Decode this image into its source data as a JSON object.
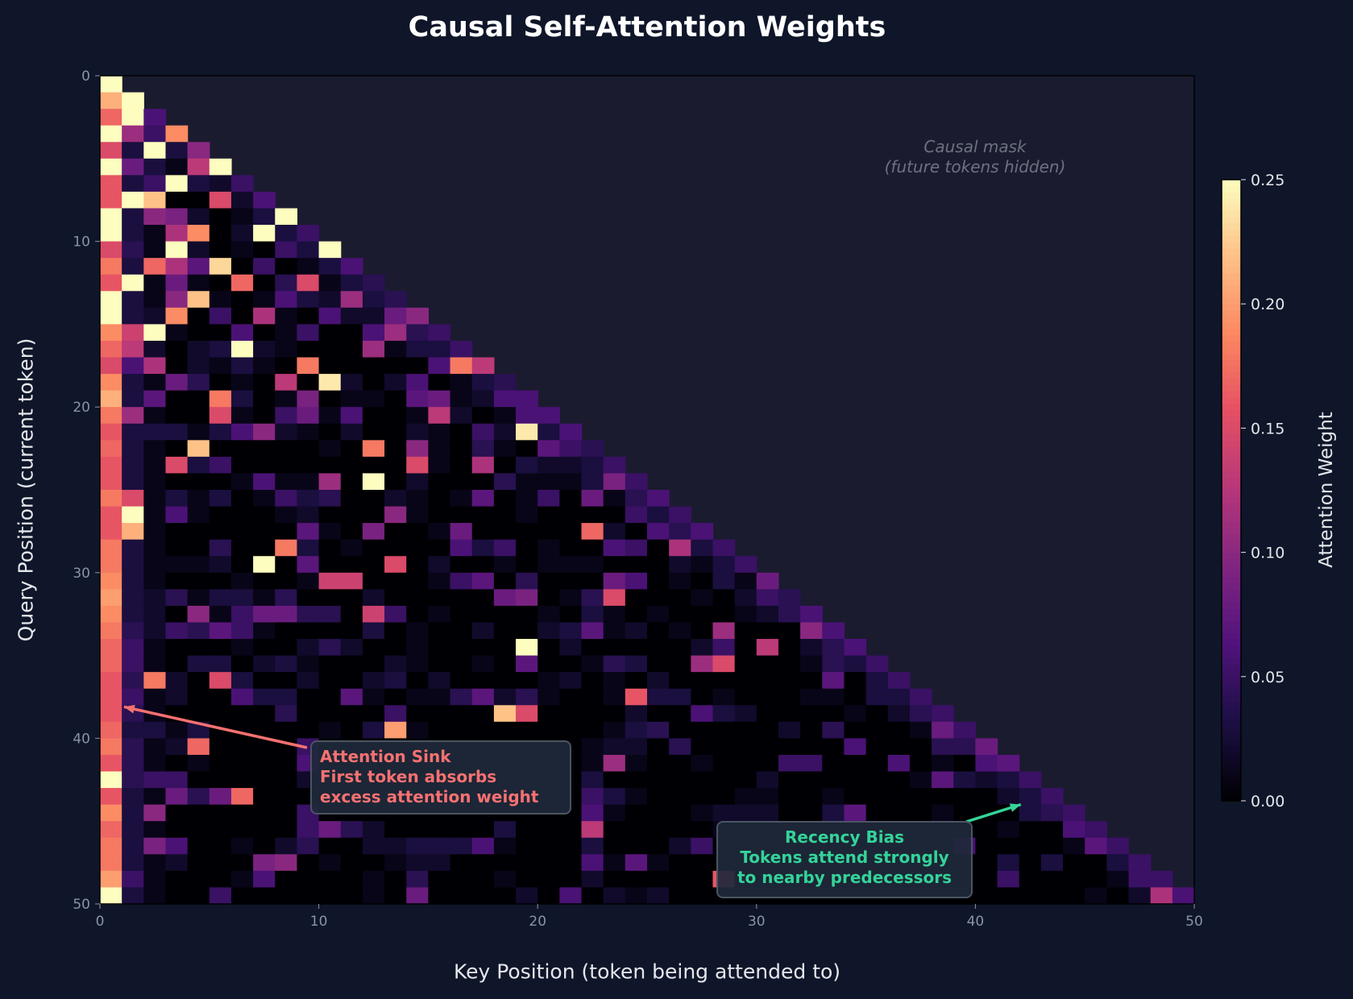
{
  "chart_data": {
    "type": "heatmap",
    "title": "Causal Self-Attention Weights",
    "xlabel": "Key Position (token being attended to)",
    "ylabel": "Query Position (current token)",
    "xlim": [
      0,
      50
    ],
    "ylim": [
      50,
      0
    ],
    "xticks": [
      "0",
      "10",
      "20",
      "30",
      "40",
      "50"
    ],
    "yticks": [
      "0",
      "10",
      "20",
      "30",
      "40",
      "50"
    ],
    "colormap": "magma",
    "colorbar": {
      "label": "Attention Weight",
      "range": [
        0,
        0.25
      ],
      "ticks": [
        "0.00",
        "0.05",
        "0.10",
        "0.15",
        "0.20",
        "0.25"
      ]
    },
    "grid": false,
    "masked_color": "#1b1b2f",
    "rows": [
      [
        0.25
      ],
      [
        0.21,
        0.25
      ],
      [
        0.17,
        0.25,
        0.06
      ],
      [
        0.25,
        0.11,
        0.05,
        0.19
      ],
      [
        0.15,
        0.03,
        0.25,
        0.03,
        0.1
      ],
      [
        0.25,
        0.08,
        0.03,
        0.01,
        0.13,
        0.25
      ],
      [
        0.16,
        0.03,
        0.05,
        0.25,
        0.03,
        0.02,
        0.05
      ],
      [
        0.16,
        0.25,
        0.22,
        0,
        0,
        0.15,
        0.02,
        0.06
      ],
      [
        0.25,
        0.03,
        0.1,
        0.09,
        0.02,
        0,
        0.01,
        0.03,
        0.25
      ],
      [
        0.25,
        0.03,
        0.01,
        0.12,
        0.19,
        0,
        0.02,
        0.25,
        0.03,
        0.05
      ],
      [
        0.15,
        0.04,
        0.01,
        0.25,
        0.02,
        0,
        0.01,
        0,
        0.05,
        0.03,
        0.25
      ],
      [
        0.18,
        0.03,
        0.17,
        0.12,
        0.07,
        0.23,
        0,
        0.05,
        0,
        0.01,
        0.03,
        0.06
      ],
      [
        0.16,
        0.25,
        0.01,
        0.08,
        0.01,
        0,
        0.17,
        0,
        0.04,
        0.15,
        0.01,
        0.03,
        0.04
      ],
      [
        0.25,
        0.03,
        0.01,
        0.1,
        0.22,
        0.01,
        0,
        0.01,
        0.06,
        0.03,
        0.02,
        0.11,
        0.03,
        0.04
      ],
      [
        0.25,
        0.03,
        0.02,
        0.19,
        0,
        0.05,
        0,
        0.12,
        0.01,
        0,
        0.06,
        0.02,
        0.02,
        0.08,
        0.1
      ],
      [
        0.19,
        0.14,
        0.25,
        0.01,
        0,
        0,
        0.06,
        0,
        0.01,
        0.05,
        0,
        0,
        0.06,
        0.11,
        0.04,
        0.05
      ],
      [
        0.17,
        0.13,
        0.02,
        0,
        0.02,
        0.03,
        0.25,
        0.02,
        0.01,
        0,
        0,
        0,
        0.11,
        0.01,
        0.03,
        0.03,
        0.05
      ],
      [
        0.15,
        0.06,
        0.12,
        0,
        0.02,
        0.01,
        0.03,
        0.01,
        0,
        0.18,
        0,
        0,
        0,
        0,
        0,
        0.06,
        0.18,
        0.13
      ],
      [
        0.19,
        0.03,
        0.01,
        0.08,
        0.04,
        0,
        0.01,
        0,
        0.13,
        0,
        0.24,
        0.02,
        0,
        0.02,
        0.06,
        0,
        0.01,
        0.03,
        0.04
      ],
      [
        0.21,
        0.03,
        0.07,
        0,
        0,
        0.18,
        0.03,
        0,
        0.01,
        0.09,
        0,
        0.01,
        0.01,
        0,
        0.07,
        0.08,
        0.01,
        0.02,
        0.06,
        0.06
      ],
      [
        0.18,
        0.11,
        0.01,
        0,
        0,
        0.15,
        0.01,
        0,
        0.05,
        0.08,
        0.01,
        0.06,
        0,
        0,
        0.01,
        0.13,
        0.02,
        0,
        0.01,
        0.06,
        0.06
      ],
      [
        0.16,
        0.03,
        0.03,
        0.03,
        0.01,
        0.03,
        0.06,
        0.1,
        0.02,
        0.01,
        0,
        0.02,
        0,
        0,
        0.02,
        0.01,
        0,
        0.05,
        0.02,
        0.24,
        0.03,
        0.06
      ],
      [
        0.17,
        0.03,
        0.01,
        0,
        0.22,
        0,
        0,
        0,
        0,
        0,
        0.01,
        0,
        0.18,
        0,
        0.1,
        0.01,
        0,
        0.04,
        0.01,
        0,
        0.07,
        0.05,
        0.04
      ],
      [
        0.16,
        0.03,
        0.01,
        0.15,
        0.03,
        0.05,
        0,
        0,
        0,
        0,
        0,
        0,
        0,
        0,
        0.15,
        0.01,
        0,
        0.12,
        0,
        0.03,
        0.02,
        0.02,
        0.03,
        0.05
      ],
      [
        0.16,
        0.03,
        0.01,
        0,
        0,
        0,
        0.01,
        0.06,
        0.01,
        0.01,
        0.11,
        0,
        0.25,
        0,
        0.02,
        0,
        0,
        0,
        0.04,
        0.01,
        0.01,
        0.01,
        0.03,
        0.09,
        0.05
      ],
      [
        0.18,
        0.15,
        0.01,
        0.03,
        0.01,
        0.03,
        0,
        0.01,
        0.05,
        0.03,
        0.04,
        0,
        0,
        0.02,
        0.01,
        0,
        0.01,
        0.07,
        0,
        0.01,
        0.05,
        0,
        0.08,
        0.01,
        0.04,
        0.06
      ],
      [
        0.16,
        0.25,
        0.01,
        0.06,
        0.01,
        0,
        0,
        0,
        0.01,
        0.02,
        0,
        0,
        0,
        0.1,
        0.01,
        0,
        0,
        0,
        0,
        0.01,
        0,
        0,
        0,
        0,
        0.05,
        0.03,
        0.05
      ],
      [
        0.16,
        0.21,
        0.01,
        0,
        0,
        0,
        0,
        0,
        0,
        0.07,
        0.01,
        0,
        0.09,
        0,
        0,
        0.01,
        0.08,
        0,
        0,
        0,
        0,
        0,
        0.17,
        0.02,
        0,
        0.06,
        0.04,
        0.06
      ],
      [
        0.18,
        0.03,
        0.01,
        0,
        0,
        0.04,
        0,
        0,
        0.18,
        0.03,
        0,
        0.01,
        0,
        0,
        0,
        0,
        0.06,
        0.03,
        0.05,
        0,
        0.01,
        0,
        0,
        0.06,
        0.05,
        0,
        0.12,
        0.03,
        0.05
      ],
      [
        0.18,
        0.03,
        0.01,
        0.01,
        0.01,
        0.02,
        0,
        0.25,
        0,
        0.07,
        0,
        0,
        0,
        0.15,
        0,
        0.02,
        0,
        0,
        0.01,
        0,
        0.01,
        0.01,
        0.01,
        0,
        0,
        0,
        0.02,
        0.01,
        0.03,
        0.05
      ],
      [
        0.19,
        0.03,
        0.01,
        0,
        0,
        0,
        0.01,
        0,
        0,
        0.01,
        0.14,
        0.14,
        0,
        0,
        0,
        0.01,
        0.05,
        0.07,
        0,
        0.04,
        0,
        0,
        0,
        0.08,
        0.06,
        0,
        0.01,
        0,
        0.03,
        0.01,
        0.08
      ],
      [
        0.2,
        0.03,
        0.02,
        0.04,
        0.01,
        0.03,
        0.03,
        0.01,
        0.04,
        0,
        0,
        0,
        0.02,
        0,
        0,
        0,
        0,
        0,
        0.08,
        0.09,
        0,
        0.01,
        0.04,
        0.15,
        0,
        0,
        0,
        0.01,
        0,
        0.02,
        0.05,
        0.04
      ],
      [
        0.19,
        0.03,
        0.02,
        0,
        0.1,
        0.01,
        0.05,
        0.08,
        0.08,
        0.04,
        0.04,
        0,
        0.14,
        0.05,
        0,
        0.01,
        0,
        0,
        0,
        0,
        0.01,
        0,
        0.03,
        0.01,
        0,
        0.01,
        0,
        0,
        0,
        0.01,
        0.02,
        0.04,
        0.06
      ],
      [
        0.18,
        0.04,
        0.02,
        0.05,
        0.04,
        0.07,
        0.05,
        0.01,
        0,
        0,
        0,
        0,
        0.03,
        0,
        0.01,
        0,
        0,
        0.02,
        0,
        0,
        0.02,
        0.03,
        0.07,
        0.01,
        0.02,
        0,
        0.01,
        0,
        0.11,
        0,
        0,
        0,
        0.1,
        0.06
      ],
      [
        0.17,
        0.05,
        0.01,
        0,
        0,
        0,
        0.01,
        0,
        0,
        0.02,
        0.04,
        0.02,
        0,
        0,
        0.01,
        0,
        0,
        0,
        0,
        0.25,
        0,
        0.02,
        0,
        0,
        0,
        0,
        0,
        0.02,
        0.05,
        0,
        0.13,
        0,
        0.02,
        0.04,
        0.06
      ],
      [
        0.17,
        0.05,
        0.01,
        0,
        0.03,
        0.03,
        0,
        0.02,
        0.03,
        0.01,
        0,
        0,
        0,
        0.02,
        0.01,
        0,
        0,
        0.01,
        0,
        0.07,
        0,
        0,
        0.01,
        0.04,
        0.03,
        0,
        0,
        0.11,
        0.15,
        0,
        0,
        0,
        0.01,
        0.04,
        0.03,
        0.05
      ],
      [
        0.16,
        0.04,
        0.18,
        0.02,
        0,
        0.15,
        0.03,
        0,
        0,
        0.02,
        0,
        0,
        0.02,
        0.03,
        0,
        0.02,
        0,
        0,
        0,
        0,
        0.01,
        0.02,
        0,
        0.01,
        0,
        0.02,
        0,
        0,
        0,
        0,
        0,
        0,
        0,
        0.07,
        0,
        0.03,
        0.05
      ],
      [
        0.16,
        0.05,
        0.01,
        0.02,
        0,
        0,
        0.06,
        0.03,
        0.03,
        0,
        0,
        0.07,
        0.01,
        0,
        0.01,
        0.01,
        0.04,
        0.07,
        0.02,
        0.04,
        0.01,
        0,
        0,
        0.01,
        0.16,
        0.03,
        0.03,
        0,
        0.01,
        0,
        0,
        0,
        0.01,
        0.01,
        0,
        0.03,
        0.03,
        0.05
      ],
      [
        0.16,
        0.04,
        0.01,
        0,
        0,
        0,
        0,
        0,
        0.04,
        0,
        0,
        0,
        0,
        0.05,
        0,
        0,
        0,
        0,
        0.22,
        0.15,
        0,
        0,
        0,
        0,
        0.02,
        0,
        0,
        0.06,
        0.03,
        0.02,
        0,
        0,
        0,
        0,
        0.01,
        0,
        0.02,
        0.04,
        0.05
      ],
      [
        0.17,
        0.03,
        0.03,
        0.01,
        0.03,
        0,
        0,
        0,
        0,
        0,
        0.01,
        0,
        0.03,
        0.2,
        0.01,
        0,
        0,
        0,
        0,
        0,
        0,
        0,
        0,
        0.01,
        0.03,
        0.04,
        0,
        0,
        0,
        0,
        0,
        0.02,
        0,
        0.04,
        0,
        0,
        0,
        0.01,
        0.08,
        0.05
      ],
      [
        0.18,
        0.04,
        0.01,
        0.02,
        0.17,
        0,
        0,
        0,
        0,
        0.05,
        0,
        0,
        0,
        0,
        0,
        0,
        0,
        0,
        0,
        0,
        0,
        0,
        0.01,
        0.02,
        0.02,
        0,
        0.04,
        0,
        0,
        0,
        0,
        0,
        0,
        0,
        0.06,
        0,
        0,
        0,
        0.04,
        0.04,
        0.08
      ],
      [
        0.16,
        0.04,
        0.01,
        0,
        0.01,
        0,
        0,
        0,
        0,
        0.06,
        0,
        0,
        0,
        0,
        0,
        0,
        0,
        0,
        0,
        0,
        0,
        0,
        0.01,
        0.11,
        0.01,
        0,
        0,
        0.01,
        0,
        0,
        0,
        0.05,
        0.05,
        0,
        0,
        0,
        0.06,
        0,
        0.01,
        0,
        0.06,
        0.07
      ],
      [
        0.25,
        0.04,
        0.05,
        0.05,
        0,
        0,
        0,
        0,
        0,
        0.02,
        0,
        0,
        0,
        0,
        0,
        0,
        0,
        0,
        0,
        0,
        0,
        0,
        0.03,
        0,
        0,
        0,
        0,
        0,
        0,
        0,
        0.02,
        0,
        0,
        0,
        0,
        0,
        0,
        0.01,
        0.07,
        0.03,
        0.02,
        0.03,
        0.05
      ],
      [
        0.16,
        0.03,
        0.01,
        0.08,
        0.04,
        0.08,
        0.17,
        0,
        0,
        0,
        0,
        0,
        0,
        0,
        0,
        0,
        0,
        0,
        0,
        0,
        0,
        0,
        0.05,
        0.03,
        0.01,
        0,
        0,
        0,
        0,
        0.01,
        0.01,
        0,
        0,
        0.01,
        0,
        0,
        0,
        0,
        0,
        0,
        0,
        0.02,
        0.03,
        0.05
      ],
      [
        0.19,
        0.03,
        0.1,
        0,
        0,
        0,
        0,
        0,
        0,
        0.05,
        0,
        0,
        0,
        0,
        0,
        0,
        0,
        0,
        0,
        0,
        0,
        0,
        0.06,
        0.01,
        0,
        0,
        0,
        0.01,
        0.02,
        0.02,
        0.02,
        0,
        0,
        0.03,
        0.07,
        0,
        0,
        0,
        0.01,
        0,
        0,
        0,
        0.03,
        0.04,
        0.05
      ],
      [
        0.17,
        0.03,
        0.01,
        0,
        0,
        0,
        0,
        0,
        0,
        0.05,
        0.08,
        0.04,
        0.02,
        0,
        0,
        0,
        0,
        0,
        0.03,
        0,
        0,
        0,
        0.13,
        0,
        0,
        0,
        0,
        0,
        0.01,
        0,
        0,
        0,
        0,
        0,
        0,
        0,
        0,
        0,
        0,
        0,
        0,
        0.01,
        0,
        0,
        0.06,
        0.05
      ],
      [
        0.18,
        0.03,
        0.09,
        0.06,
        0,
        0,
        0.01,
        0,
        0.02,
        0.04,
        0,
        0,
        0.02,
        0.02,
        0.03,
        0.03,
        0.03,
        0.06,
        0.01,
        0,
        0,
        0,
        0.03,
        0,
        0,
        0,
        0.02,
        0.05,
        0,
        0,
        0,
        0,
        0,
        0,
        0,
        0,
        0,
        0,
        0,
        0.06,
        0,
        0,
        0,
        0,
        0.01,
        0.07,
        0.05
      ],
      [
        0.18,
        0.03,
        0.01,
        0.02,
        0,
        0,
        0,
        0.09,
        0.1,
        0,
        0.01,
        0,
        0,
        0.01,
        0.02,
        0.02,
        0,
        0,
        0,
        0,
        0,
        0,
        0.06,
        0.01,
        0.07,
        0.01,
        0,
        0,
        0,
        0,
        0,
        0,
        0,
        0,
        0,
        0,
        0,
        0,
        0,
        0,
        0,
        0.03,
        0,
        0.03,
        0,
        0,
        0.03,
        0.05
      ],
      [
        0.2,
        0.05,
        0.01,
        0,
        0,
        0,
        0.01,
        0.06,
        0,
        0,
        0,
        0,
        0.01,
        0,
        0.04,
        0,
        0,
        0,
        0.01,
        0,
        0,
        0,
        0.02,
        0,
        0,
        0,
        0,
        0,
        0.16,
        0,
        0,
        0,
        0,
        0,
        0,
        0,
        0,
        0,
        0,
        0,
        0,
        0.05,
        0,
        0,
        0,
        0,
        0.01,
        0.05,
        0.05
      ],
      [
        0.25,
        0.03,
        0.01,
        0,
        0,
        0.05,
        0,
        0,
        0,
        0,
        0,
        0,
        0.01,
        0,
        0.08,
        0,
        0,
        0,
        0,
        0.02,
        0,
        0.06,
        0,
        0.02,
        0.01,
        0.02,
        0,
        0,
        0,
        0,
        0,
        0,
        0,
        0,
        0,
        0,
        0,
        0,
        0,
        0,
        0,
        0,
        0,
        0,
        0,
        0.01,
        0,
        0.02,
        0.12,
        0.06
      ]
    ],
    "annotations": [
      {
        "name": "attention-sink",
        "text": [
          "Attention Sink",
          "First token absorbs",
          "excess attention weight"
        ],
        "points_to": [
          1,
          38
        ],
        "color": "#f87171"
      },
      {
        "name": "recency-bias",
        "text": [
          "Recency Bias",
          "Tokens attend strongly",
          "to nearby predecessors"
        ],
        "points_to": [
          42,
          44
        ],
        "color": "#34d399"
      }
    ],
    "mask_note": [
      "Causal mask",
      "(future tokens hidden)"
    ]
  }
}
